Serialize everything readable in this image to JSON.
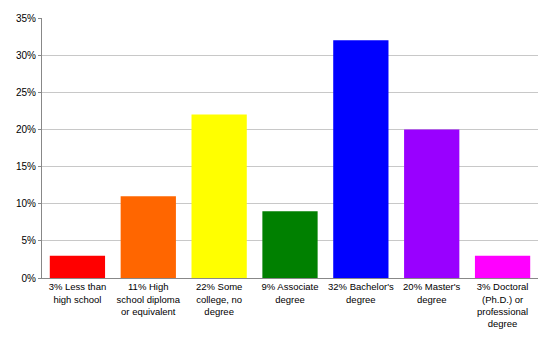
{
  "chart_data": {
    "type": "bar",
    "categories": [
      "3% Less than high school",
      "11% High school diploma or equivalent",
      "22% Some college, no degree",
      "9% Associate degree",
      "32% Bachelor's degree",
      "20% Master's degree",
      "3% Doctoral (Ph.D.) or professional degree"
    ],
    "values": [
      3,
      11,
      22,
      9,
      32,
      20,
      3
    ],
    "colors": [
      "#ff0000",
      "#ff6600",
      "#ffff00",
      "#008000",
      "#0000ff",
      "#9900ff",
      "#ff00ff"
    ],
    "ylim": [
      0,
      35
    ],
    "yticks": [
      {
        "value": 0,
        "label": "0%"
      },
      {
        "value": 5,
        "label": "5%"
      },
      {
        "value": 10,
        "label": "10%"
      },
      {
        "value": 15,
        "label": "15%"
      },
      {
        "value": 20,
        "label": "20%"
      },
      {
        "value": 25,
        "label": "25%"
      },
      {
        "value": 30,
        "label": "30%"
      },
      {
        "value": 35,
        "label": "35%"
      }
    ],
    "grid": true
  }
}
